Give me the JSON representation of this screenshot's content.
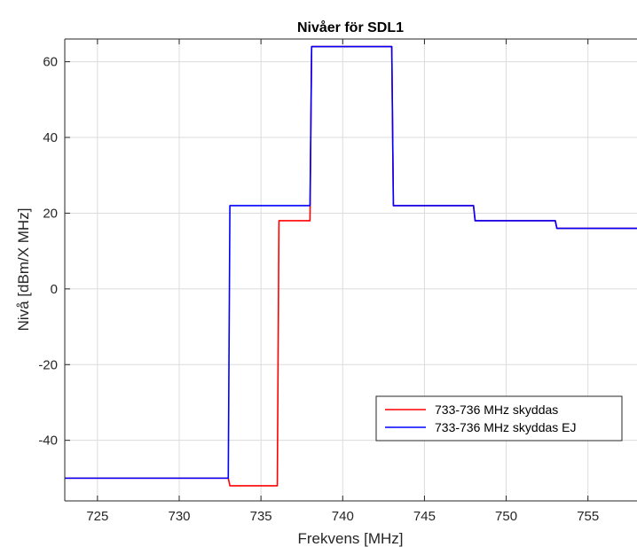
{
  "chart_data": {
    "type": "line",
    "title": "Nivåer för SDL1",
    "xlabel": "Frekvens [MHz]",
    "ylabel": "Nivå [dBm/X MHz]",
    "xlim": [
      723,
      758
    ],
    "ylim": [
      -56,
      66
    ],
    "xticks": [
      725,
      730,
      735,
      740,
      745,
      750,
      755
    ],
    "yticks": [
      -40,
      -20,
      0,
      20,
      40,
      60
    ],
    "grid": true,
    "legend_position": "bottom-right",
    "series": [
      {
        "name": "733-736 MHz skyddas",
        "color": "#ff0000",
        "x": [
          723,
          733,
          733.1,
          736,
          736.1,
          738,
          738.1,
          743,
          743.1,
          748,
          748.1,
          753,
          753.1,
          758
        ],
        "y": [
          -50,
          -50,
          -52,
          -52,
          18,
          18,
          64,
          64,
          22,
          22,
          18,
          18,
          16,
          16
        ]
      },
      {
        "name": "733-736 MHz skyddas EJ",
        "color": "#0000ff",
        "x": [
          723,
          733,
          733.1,
          738,
          738.1,
          743,
          743.1,
          748,
          748.1,
          753,
          753.1,
          758
        ],
        "y": [
          -50,
          -50,
          22,
          22,
          64,
          64,
          22,
          22,
          18,
          18,
          16,
          16
        ]
      }
    ]
  }
}
